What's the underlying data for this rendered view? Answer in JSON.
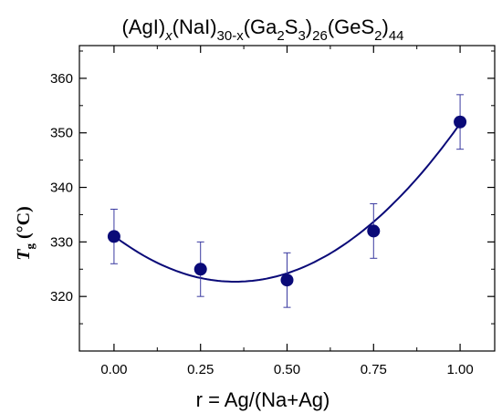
{
  "chart_data": {
    "type": "scatter",
    "title": {
      "parts": [
        "(AgI)",
        "x",
        "(NaI)",
        "30-x",
        "(Ga",
        "2",
        "S",
        "3",
        ")",
        "26",
        "(GeS",
        "2",
        ")",
        "44"
      ]
    },
    "xlabel": "r = Ag/(Na+Ag)",
    "ylabel": {
      "main": "T",
      "sub": "g",
      "unit": " (°C)"
    },
    "xlim": [
      -0.1,
      1.1
    ],
    "ylim": [
      310,
      366
    ],
    "x_ticks": [
      "0.00",
      "0.25",
      "0.50",
      "0.75",
      "1.00"
    ],
    "y_ticks": [
      "320",
      "330",
      "340",
      "350",
      "360"
    ],
    "grid": false,
    "colors": {
      "marker": "#0a0a78",
      "fit_line": "#0a0a78",
      "error_bar": "#3a3aa0",
      "axis": "#000000"
    },
    "series": [
      {
        "x": [
          0.0,
          0.25,
          0.5,
          0.75,
          1.0
        ],
        "y": [
          331,
          325,
          323,
          332,
          352
        ],
        "error": [
          5,
          5,
          5,
          5,
          5
        ]
      }
    ],
    "fit": {
      "type": "quadratic",
      "coefficients": [
        331.1,
        -48.0,
        68.6
      ]
    }
  }
}
